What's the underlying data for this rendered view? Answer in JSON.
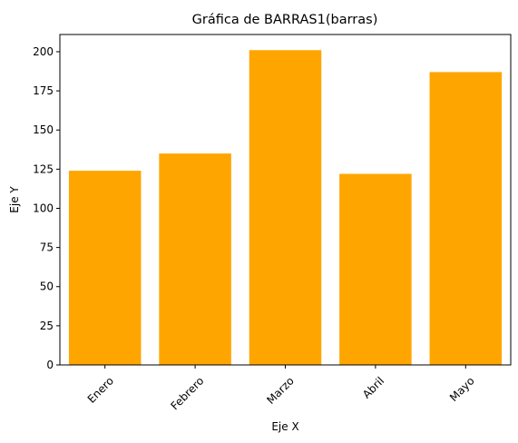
{
  "chart_data": {
    "type": "bar",
    "title": "Gráfica de BARRAS1(barras)",
    "xlabel": "Eje X",
    "ylabel": "Eje Y",
    "categories": [
      "Enero",
      "Febrero",
      "Marzo",
      "Abril",
      "Mayo"
    ],
    "values": [
      124,
      135,
      201,
      122,
      187
    ],
    "ylim": [
      0,
      211
    ],
    "yticks": [
      0,
      25,
      50,
      75,
      100,
      125,
      150,
      175,
      200
    ],
    "bar_color": "#FFA500",
    "grid": false,
    "legend": "none",
    "xtick_rotation": 45
  }
}
